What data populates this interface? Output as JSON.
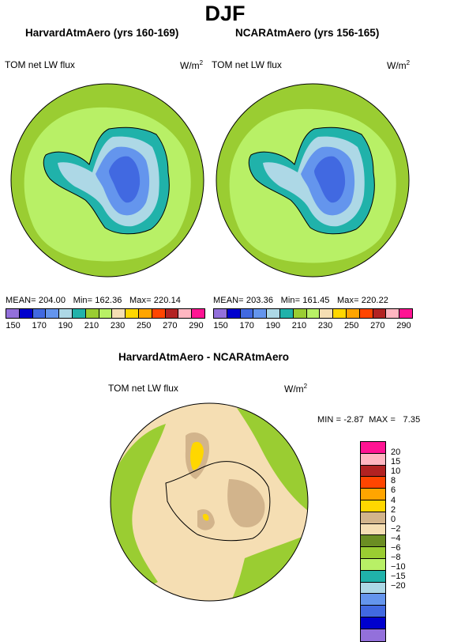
{
  "figure_title": "DJF",
  "panels": [
    {
      "title": "HarvardAtmAero (yrs 160-169)",
      "variable": "TOM net LW flux",
      "units_base": "W/m",
      "units_exp": "2",
      "stats": {
        "mean": "MEAN= 204.00",
        "min": "Min= 162.36",
        "max": "Max= 220.14"
      }
    },
    {
      "title": "NCARAtmAero (yrs 156-165)",
      "variable": "TOM net LW flux",
      "units_base": "W/m",
      "units_exp": "2",
      "stats": {
        "mean": "MEAN= 203.36",
        "min": "Min= 161.45",
        "max": "Max= 220.22"
      }
    }
  ],
  "top_colorbar": {
    "colors": [
      "#9370db",
      "#0000cd",
      "#4169e1",
      "#6495ed",
      "#add8e6",
      "#20b2aa",
      "#9acd32",
      "#b8f066",
      "#f5deb3",
      "#ffd700",
      "#ffa500",
      "#ff4500",
      "#b22222",
      "#ffb6c1",
      "#ff1493"
    ],
    "labels": [
      "150",
      "170",
      "190",
      "210",
      "230",
      "250",
      "270",
      "290"
    ]
  },
  "diff_panel": {
    "title": "HarvardAtmAero - NCARAtmAero",
    "variable": "TOM net LW flux",
    "units_base": "W/m",
    "units_exp": "2",
    "min_label": "MIN =",
    "min_value": "-2.87",
    "max_label": "MAX =",
    "max_value": "7.35"
  },
  "diff_colorbar": {
    "colors_top_to_bottom": [
      "#ff1493",
      "#ffb6c1",
      "#b22222",
      "#ff4500",
      "#ffa500",
      "#ffd700",
      "#d2b48c",
      "#f5deb3",
      "#6b8e23",
      "#9acd32",
      "#b8f066",
      "#20b2aa",
      "#add8e6",
      "#6495ed",
      "#4169e1",
      "#0000cd",
      "#9370db"
    ],
    "labels_top_to_bottom": [
      "20",
      "15",
      "10",
      "8",
      "6",
      "4",
      "2",
      "0",
      "−2",
      "−4",
      "−6",
      "−8",
      "−10",
      "−15",
      "−20"
    ]
  }
}
